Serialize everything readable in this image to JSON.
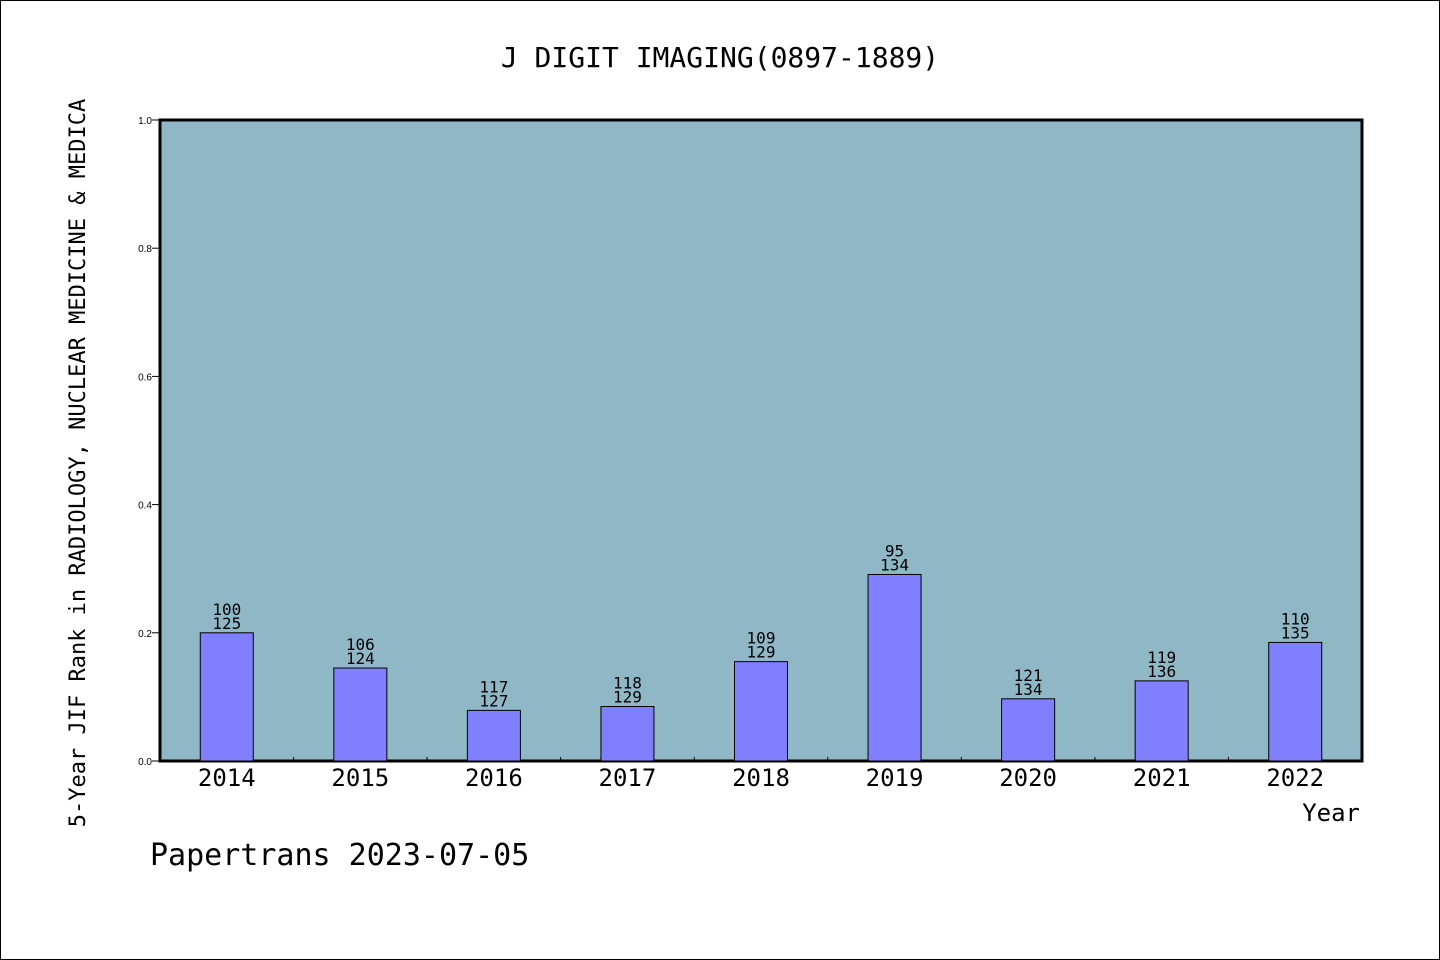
{
  "chart_data": {
    "type": "bar",
    "title": "J DIGIT IMAGING(0897-1889)",
    "xlabel": "Year",
    "ylabel": "5-Year JIF Rank in RADIOLOGY, NUCLEAR MEDICINE & MEDICA",
    "categories": [
      "2014",
      "2015",
      "2016",
      "2017",
      "2018",
      "2019",
      "2020",
      "2021",
      "2022"
    ],
    "values": [
      0.2,
      0.145,
      0.079,
      0.085,
      0.155,
      0.291,
      0.097,
      0.125,
      0.185
    ],
    "data_labels": [
      [
        "100",
        "125"
      ],
      [
        "106",
        "124"
      ],
      [
        "117",
        "127"
      ],
      [
        "118",
        "129"
      ],
      [
        "109",
        "129"
      ],
      [
        "95",
        "134"
      ],
      [
        "121",
        "134"
      ],
      [
        "119",
        "136"
      ],
      [
        "110",
        "135"
      ]
    ],
    "ylim": [
      0.0,
      1.0
    ],
    "yticks": [
      "0.0",
      "0.2",
      "0.4",
      "0.6",
      "0.8",
      "1.0"
    ],
    "grid": false,
    "colors": {
      "plot_background": "#8fb7c5",
      "bar_fill": "#8080ff",
      "bar_stroke": "#000000"
    }
  },
  "footer": "Papertrans 2023-07-05"
}
